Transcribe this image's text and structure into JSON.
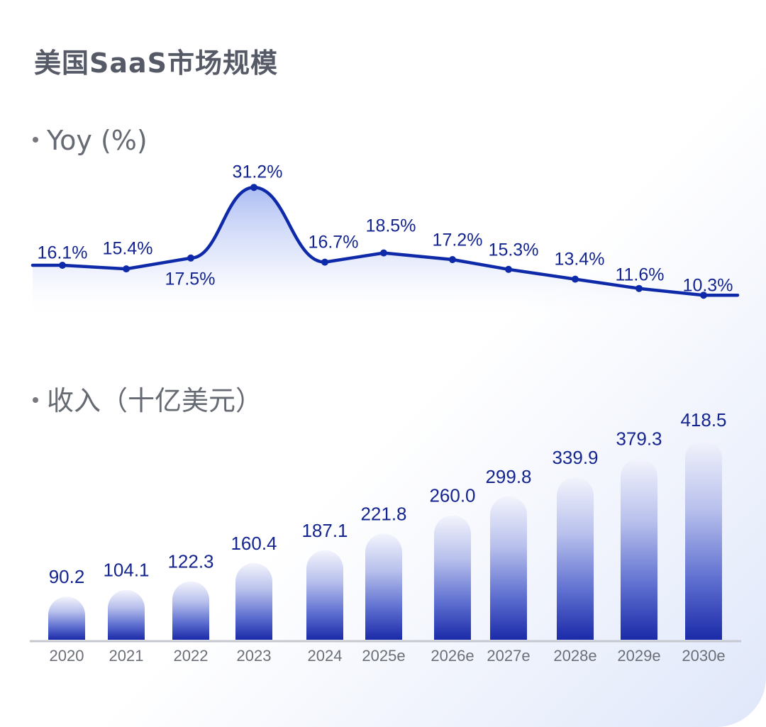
{
  "title": "美国SaaS市场规模",
  "sections": {
    "yoy_label": "Yoy (%)",
    "revenue_label": "收入（十亿美元）"
  },
  "colors": {
    "line": "#0f2aa8",
    "label": "#14258f",
    "axis_text": "#6b6f78",
    "bar_top": "#eef0fb",
    "bar_bottom": "#1f2fb0"
  },
  "chart_data": [
    {
      "type": "line",
      "title": "Yoy (%)",
      "x": [
        "2020",
        "2021",
        "2022",
        "2023",
        "2024",
        "2025e",
        "2026e",
        "2027e",
        "2028e",
        "2029e",
        "2030e"
      ],
      "series": [
        {
          "values": [
            16.1,
            15.4,
            17.5,
            31.2,
            16.7,
            18.5,
            17.2,
            15.3,
            13.4,
            11.6,
            10.3
          ],
          "labels": [
            "16.1%",
            "15.4%",
            "17.5%",
            "31.2%",
            "16.7%",
            "18.5%",
            "17.2%",
            "15.3%",
            "13.4%",
            "11.6%",
            "10.3%"
          ]
        }
      ]
    },
    {
      "type": "bar",
      "title": "收入（十亿美元）",
      "categories": [
        "2020",
        "2021",
        "2022",
        "2023",
        "2024",
        "2025e",
        "2026e",
        "2027e",
        "2028e",
        "2029e",
        "2030e"
      ],
      "values": [
        90.2,
        104.1,
        122.3,
        160.4,
        187.1,
        221.8,
        260.0,
        299.8,
        339.9,
        379.3,
        418.5
      ],
      "labels": [
        "90.2",
        "104.1",
        "122.3",
        "160.4",
        "187.1",
        "221.8",
        "260.0",
        "299.8",
        "339.9",
        "379.3",
        "418.5"
      ]
    }
  ]
}
